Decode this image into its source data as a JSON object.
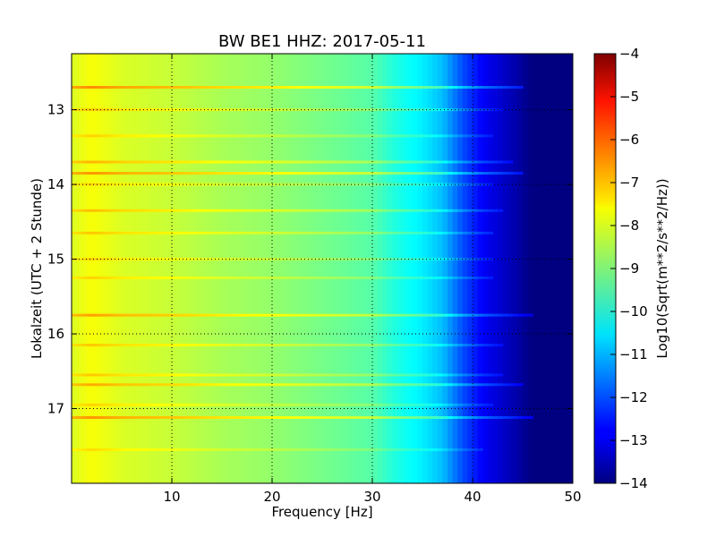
{
  "chart_data": {
    "type": "heatmap",
    "title": "BW BE1 HHZ: 2017-05-11",
    "xlabel": "Frequency [Hz]",
    "ylabel": "Lokalzeit (UTC + 2 Stunde)",
    "xlim": [
      0,
      50
    ],
    "ylim": [
      12.25,
      18.0
    ],
    "y_inverted": true,
    "x_ticks": [
      10,
      20,
      30,
      40,
      50
    ],
    "y_ticks": [
      13,
      14,
      15,
      16,
      17
    ],
    "grid": true,
    "colorbar": {
      "label": "Log10(Sqrt(m**2/s**2/Hz))",
      "min": -14,
      "max": -4,
      "ticks": [
        -4,
        -5,
        -6,
        -7,
        -8,
        -9,
        -10,
        -11,
        -12,
        -13,
        -14
      ],
      "colormap": "jet"
    },
    "spectrum_profile": [
      {
        "freq": 0,
        "value": -8.1
      },
      {
        "freq": 2,
        "value": -7.8
      },
      {
        "freq": 5,
        "value": -8.1
      },
      {
        "freq": 10,
        "value": -8.3
      },
      {
        "freq": 15,
        "value": -8.6
      },
      {
        "freq": 20,
        "value": -8.8
      },
      {
        "freq": 25,
        "value": -9.1
      },
      {
        "freq": 30,
        "value": -9.4
      },
      {
        "freq": 32,
        "value": -9.9
      },
      {
        "freq": 35,
        "value": -10.4
      },
      {
        "freq": 37,
        "value": -10.9
      },
      {
        "freq": 39,
        "value": -12.0
      },
      {
        "freq": 41,
        "value": -12.8
      },
      {
        "freq": 44,
        "value": -13.5
      },
      {
        "freq": 46,
        "value": -14.0
      },
      {
        "freq": 50,
        "value": -14.0
      }
    ],
    "horizontal_bands": [
      {
        "time": 12.7,
        "boost": 1.2,
        "fmax": 45
      },
      {
        "time": 13.0,
        "boost": 0.6,
        "fmax": 43
      },
      {
        "time": 13.35,
        "boost": 0.5,
        "fmax": 42
      },
      {
        "time": 13.7,
        "boost": 0.8,
        "fmax": 44
      },
      {
        "time": 13.85,
        "boost": 1.1,
        "fmax": 45
      },
      {
        "time": 14.0,
        "boost": 0.5,
        "fmax": 42
      },
      {
        "time": 14.35,
        "boost": 0.7,
        "fmax": 43
      },
      {
        "time": 14.65,
        "boost": 0.6,
        "fmax": 42
      },
      {
        "time": 15.0,
        "boost": 0.5,
        "fmax": 42
      },
      {
        "time": 15.25,
        "boost": 0.5,
        "fmax": 42
      },
      {
        "time": 15.75,
        "boost": 1.0,
        "fmax": 46
      },
      {
        "time": 16.15,
        "boost": 0.6,
        "fmax": 43
      },
      {
        "time": 16.55,
        "boost": 0.6,
        "fmax": 43
      },
      {
        "time": 16.68,
        "boost": 0.9,
        "fmax": 45
      },
      {
        "time": 16.95,
        "boost": 0.5,
        "fmax": 42
      },
      {
        "time": 17.12,
        "boost": 1.1,
        "fmax": 46
      },
      {
        "time": 17.55,
        "boost": 0.4,
        "fmax": 41
      }
    ]
  }
}
